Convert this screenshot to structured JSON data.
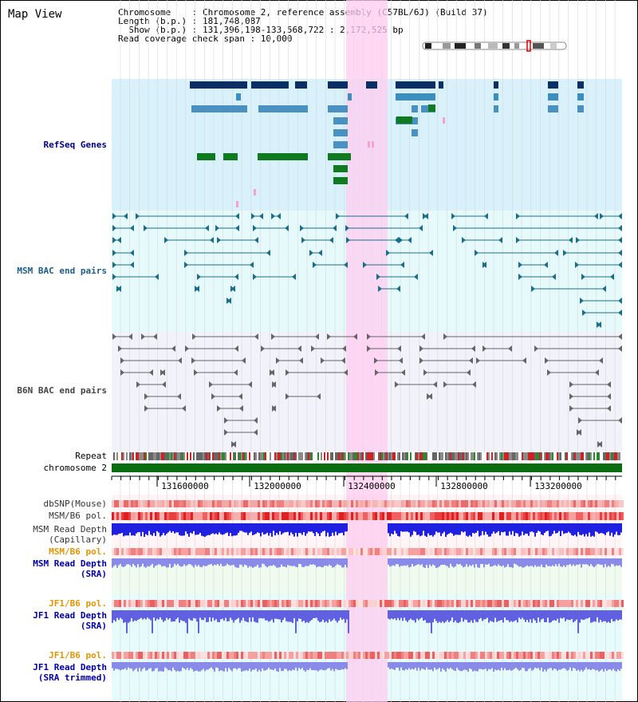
{
  "title": "Map View",
  "info": {
    "chromosome": "Chromosome    : Chromosome 2, reference assembly (C57BL/6J) (Build 37)",
    "length": "Length (b.p.) : 181,748,087",
    "show": "  Show (b.p.) : 131,396,198-133,568,722 : 2,172,525 bp",
    "coverage": "Read coverage check span : 10,000"
  },
  "labels": {
    "refseq": "RefSeq Genes",
    "msm_bac": "MSM BAC end pairs",
    "b6n_bac": "B6N BAC end pairs",
    "repeat": "Repeat",
    "chromosome": "chromosome 2",
    "dbsnp": "dbSNP(Mouse)",
    "msm_b6_pol": "MSM/B6 pol.",
    "msm_depth_cap_1": "MSM Read Depth",
    "msm_depth_cap_2": "(Capillary)",
    "msm_b6_pol2": "MSM/B6 pol.",
    "msm_depth_sra_1": "MSM Read Depth",
    "msm_depth_sra_2": "(SRA)",
    "jf1_pol": "JF1/B6 pol.",
    "jf1_depth_1": "JF1 Read Depth",
    "jf1_depth_2": "(SRA)",
    "jf1_pol2": "JF1/B6 pol.",
    "jf1_trim_1": "JF1 Read Depth",
    "jf1_trim_2": "(SRA trimmed)"
  },
  "axis": {
    "ticks": [
      "131600000",
      "132000000",
      "132400000",
      "132800000",
      "133200000"
    ]
  },
  "colors": {
    "refseq_label": "#00008b",
    "msm_label": "#1a5e8a",
    "b6n_label": "#444444",
    "pol_label": "#e69500",
    "sra_label": "#0000aa",
    "highlight": "#ffccf0"
  }
}
